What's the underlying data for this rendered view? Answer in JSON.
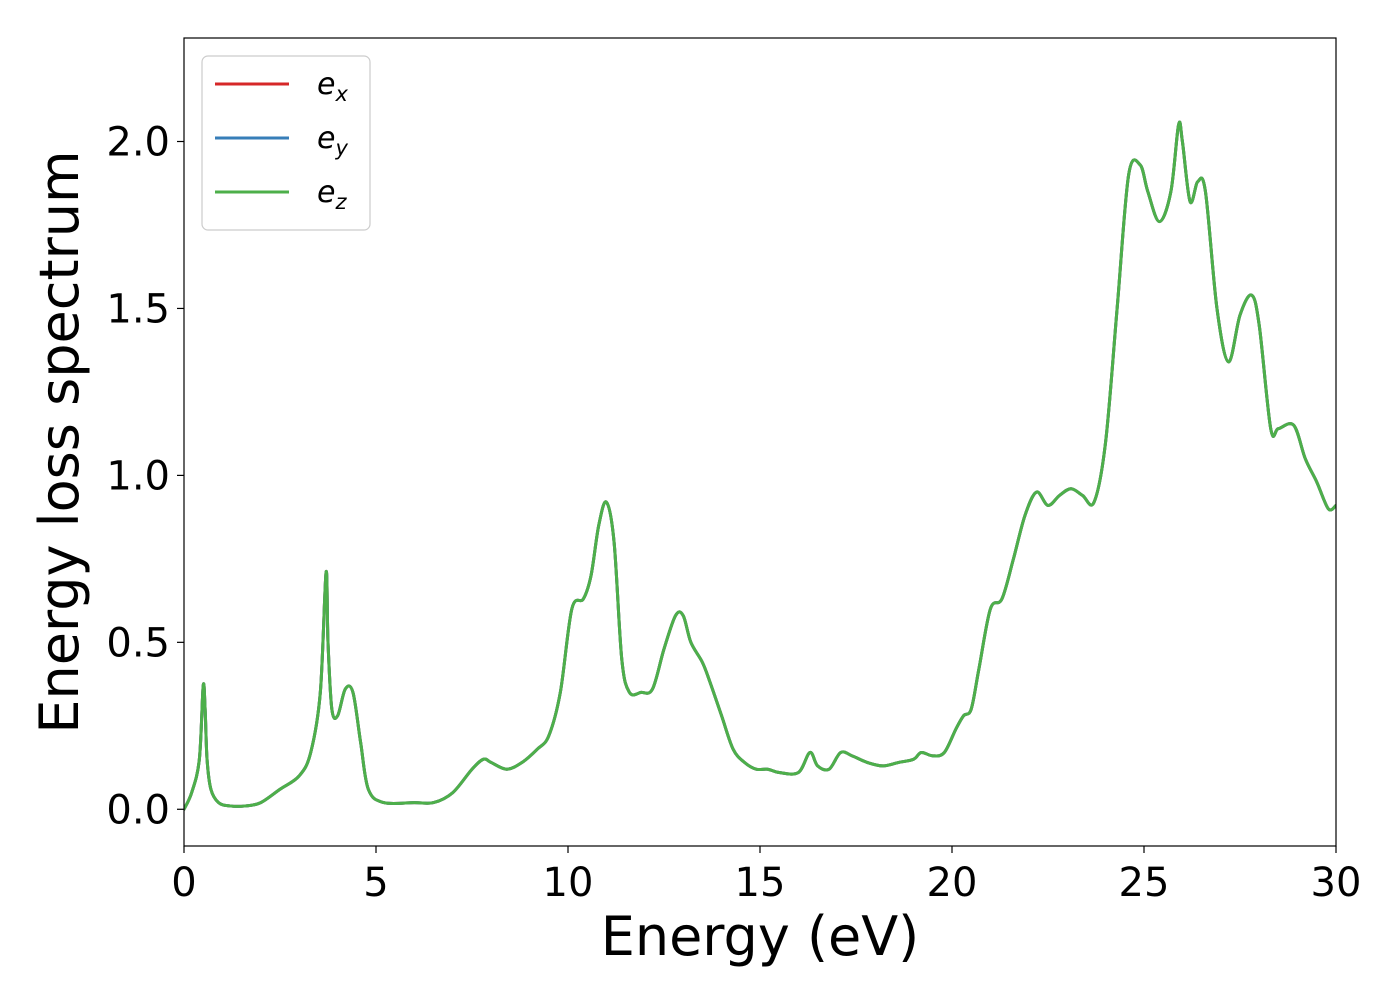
{
  "chart_data": {
    "type": "line",
    "xlabel": "Energy (eV)",
    "ylabel": "Energy loss spectrum",
    "xlim": [
      0,
      30
    ],
    "ylim": [
      -0.11,
      2.31
    ],
    "xticks": [
      0,
      5,
      10,
      15,
      20,
      25,
      30
    ],
    "xtick_labels": [
      "0",
      "5",
      "10",
      "15",
      "20",
      "25",
      "30"
    ],
    "yticks": [
      0.0,
      0.5,
      1.0,
      1.5,
      2.0
    ],
    "ytick_labels": [
      "0.0",
      "0.5",
      "1.0",
      "1.5",
      "2.0"
    ],
    "grid": false,
    "legend_position": "top-left",
    "x": [
      0,
      0.2,
      0.4,
      0.5,
      0.55,
      0.6,
      0.7,
      0.9,
      1.2,
      1.6,
      2.0,
      2.5,
      3.0,
      3.3,
      3.55,
      3.7,
      3.75,
      3.85,
      4.0,
      4.2,
      4.4,
      4.6,
      4.8,
      5.2,
      6.0,
      6.5,
      7.0,
      7.5,
      7.8,
      8.0,
      8.4,
      8.8,
      9.2,
      9.5,
      9.8,
      10.1,
      10.4,
      10.6,
      10.8,
      11.0,
      11.2,
      11.4,
      11.6,
      11.9,
      12.2,
      12.5,
      12.8,
      13.0,
      13.2,
      13.5,
      13.7,
      14.0,
      14.3,
      14.6,
      14.9,
      15.2,
      15.5,
      16.0,
      16.3,
      16.5,
      16.8,
      17.1,
      17.4,
      17.8,
      18.2,
      18.6,
      19.0,
      19.2,
      19.5,
      19.8,
      20.1,
      20.3,
      20.5,
      20.7,
      21.0,
      21.3,
      21.6,
      21.9,
      22.2,
      22.5,
      22.8,
      23.1,
      23.4,
      23.7,
      24.0,
      24.3,
      24.6,
      24.9,
      25.1,
      25.4,
      25.7,
      25.9,
      26.0,
      26.2,
      26.4,
      26.6,
      26.9,
      27.2,
      27.5,
      27.8,
      28.0,
      28.3,
      28.5,
      28.9,
      29.2,
      29.5,
      29.8,
      30.0
    ],
    "series": [
      {
        "name": "e_x",
        "color": "#d62728",
        "values": [
          0.0,
          0.05,
          0.15,
          0.37,
          0.3,
          0.15,
          0.06,
          0.02,
          0.01,
          0.01,
          0.02,
          0.06,
          0.1,
          0.17,
          0.35,
          0.71,
          0.5,
          0.3,
          0.28,
          0.36,
          0.35,
          0.2,
          0.06,
          0.02,
          0.02,
          0.02,
          0.05,
          0.12,
          0.15,
          0.14,
          0.12,
          0.14,
          0.18,
          0.22,
          0.35,
          0.6,
          0.63,
          0.7,
          0.85,
          0.92,
          0.8,
          0.45,
          0.35,
          0.35,
          0.36,
          0.48,
          0.58,
          0.58,
          0.5,
          0.44,
          0.38,
          0.28,
          0.18,
          0.14,
          0.12,
          0.12,
          0.11,
          0.11,
          0.17,
          0.13,
          0.12,
          0.17,
          0.16,
          0.14,
          0.13,
          0.14,
          0.15,
          0.17,
          0.16,
          0.17,
          0.24,
          0.28,
          0.3,
          0.42,
          0.6,
          0.63,
          0.75,
          0.88,
          0.95,
          0.91,
          0.94,
          0.96,
          0.94,
          0.92,
          1.1,
          1.5,
          1.9,
          1.93,
          1.85,
          1.76,
          1.85,
          2.05,
          2.0,
          1.82,
          1.88,
          1.85,
          1.5,
          1.34,
          1.48,
          1.54,
          1.45,
          1.14,
          1.14,
          1.15,
          1.05,
          0.98,
          0.9,
          0.91
        ]
      },
      {
        "name": "e_y",
        "color": "#377eb8",
        "values": [
          0.0,
          0.05,
          0.15,
          0.37,
          0.3,
          0.15,
          0.06,
          0.02,
          0.01,
          0.01,
          0.02,
          0.06,
          0.1,
          0.17,
          0.35,
          0.71,
          0.5,
          0.3,
          0.28,
          0.36,
          0.35,
          0.2,
          0.06,
          0.02,
          0.02,
          0.02,
          0.05,
          0.12,
          0.15,
          0.14,
          0.12,
          0.14,
          0.18,
          0.22,
          0.35,
          0.6,
          0.63,
          0.7,
          0.85,
          0.92,
          0.8,
          0.45,
          0.35,
          0.35,
          0.36,
          0.48,
          0.58,
          0.58,
          0.5,
          0.44,
          0.38,
          0.28,
          0.18,
          0.14,
          0.12,
          0.12,
          0.11,
          0.11,
          0.17,
          0.13,
          0.12,
          0.17,
          0.16,
          0.14,
          0.13,
          0.14,
          0.15,
          0.17,
          0.16,
          0.17,
          0.24,
          0.28,
          0.3,
          0.42,
          0.6,
          0.63,
          0.75,
          0.88,
          0.95,
          0.91,
          0.94,
          0.96,
          0.94,
          0.92,
          1.1,
          1.5,
          1.9,
          1.93,
          1.85,
          1.76,
          1.85,
          2.05,
          2.0,
          1.82,
          1.88,
          1.85,
          1.5,
          1.34,
          1.48,
          1.54,
          1.45,
          1.14,
          1.14,
          1.15,
          1.05,
          0.98,
          0.9,
          0.91
        ]
      },
      {
        "name": "e_z",
        "color": "#4daf4a",
        "values": [
          0.0,
          0.05,
          0.15,
          0.37,
          0.3,
          0.15,
          0.06,
          0.02,
          0.01,
          0.01,
          0.02,
          0.06,
          0.1,
          0.17,
          0.35,
          0.71,
          0.5,
          0.3,
          0.28,
          0.36,
          0.35,
          0.2,
          0.06,
          0.02,
          0.02,
          0.02,
          0.05,
          0.12,
          0.15,
          0.14,
          0.12,
          0.14,
          0.18,
          0.22,
          0.35,
          0.6,
          0.63,
          0.7,
          0.85,
          0.92,
          0.8,
          0.45,
          0.35,
          0.35,
          0.36,
          0.48,
          0.58,
          0.58,
          0.5,
          0.44,
          0.38,
          0.28,
          0.18,
          0.14,
          0.12,
          0.12,
          0.11,
          0.11,
          0.17,
          0.13,
          0.12,
          0.17,
          0.16,
          0.14,
          0.13,
          0.14,
          0.15,
          0.17,
          0.16,
          0.17,
          0.24,
          0.28,
          0.3,
          0.42,
          0.6,
          0.63,
          0.75,
          0.88,
          0.95,
          0.91,
          0.94,
          0.96,
          0.94,
          0.92,
          1.1,
          1.5,
          1.9,
          1.93,
          1.85,
          1.76,
          1.85,
          2.05,
          2.0,
          1.82,
          1.88,
          1.85,
          1.5,
          1.34,
          1.48,
          1.54,
          1.45,
          1.14,
          1.14,
          1.15,
          1.05,
          0.98,
          0.9,
          0.91
        ]
      }
    ],
    "legend": [
      {
        "base": "e",
        "sub": "x",
        "color": "#d62728"
      },
      {
        "base": "e",
        "sub": "y",
        "color": "#377eb8"
      },
      {
        "base": "e",
        "sub": "z",
        "color": "#4daf4a"
      }
    ]
  }
}
